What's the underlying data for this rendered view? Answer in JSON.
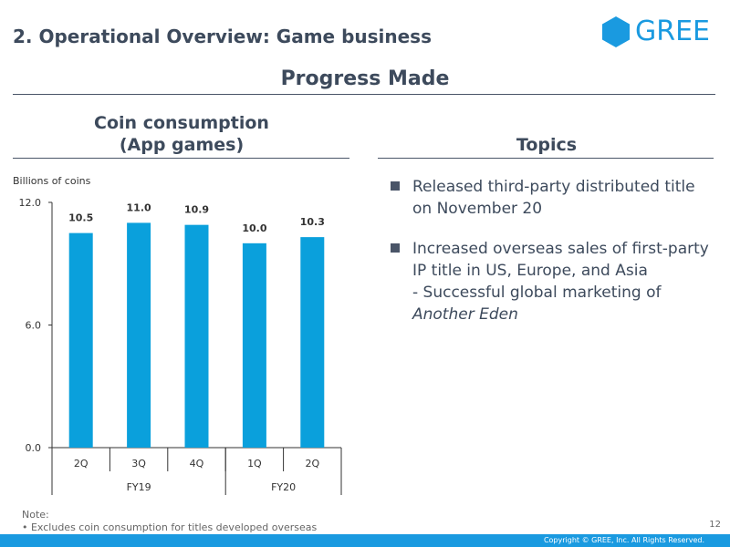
{
  "header": {
    "title": "2. Operational Overview: Game business",
    "logo_text": "GREE",
    "subtitle": "Progress Made"
  },
  "left": {
    "title_line1": "Coin consumption",
    "title_line2": "(App games)",
    "unit": "Billions of coins"
  },
  "right": {
    "title": "Topics",
    "topics": [
      {
        "text": "Released third-party distributed title on November 20"
      },
      {
        "text": "Increased overseas sales of first-party IP title in US, Europe, and Asia",
        "sub": "- Successful global marketing of",
        "italic": "Another Eden"
      }
    ]
  },
  "chart_data": {
    "type": "bar",
    "categories": [
      "2Q",
      "3Q",
      "4Q",
      "1Q",
      "2Q"
    ],
    "groups": [
      {
        "label": "FY19",
        "count": 3
      },
      {
        "label": "FY20",
        "count": 2
      }
    ],
    "values": [
      10.5,
      11.0,
      10.9,
      10.0,
      10.3
    ],
    "data_labels": [
      "10.5",
      "11.0",
      "10.9",
      "10.0",
      "10.3"
    ],
    "yticks": [
      "0.0",
      "6.0",
      "12.0"
    ],
    "ylim": [
      0,
      12
    ],
    "ylabel": "Billions of coins",
    "color": "#0aa0dc"
  },
  "footer": {
    "note_title": "Note:",
    "note_text": "• Excludes coin consumption for titles developed overseas",
    "page_number": "12",
    "copyright": "Copyright © GREE, Inc. All Rights Reserved."
  },
  "colors": {
    "brand": "#1a9ae0",
    "text": "#3d4a5c",
    "bar": "#0aa0dc"
  }
}
